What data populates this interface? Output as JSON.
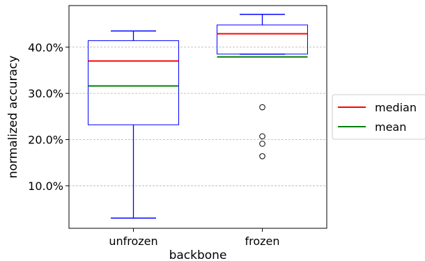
{
  "chart_data": {
    "type": "box",
    "xlabel": "backbone",
    "ylabel": "normalized accuracy",
    "categories": [
      "unfrozen",
      "frozen"
    ],
    "ylim": [
      0.008,
      0.49
    ],
    "yticks": [
      0.1,
      0.2,
      0.3,
      0.4
    ],
    "ytick_labels": [
      "10.0%",
      "20.0%",
      "30.0%",
      "40.0%"
    ],
    "grid": "y-dashed",
    "series": [
      {
        "category": "unfrozen",
        "whisker_low": 0.03,
        "q1": 0.232,
        "median": 0.37,
        "mean": 0.316,
        "q3": 0.414,
        "whisker_high": 0.435,
        "outliers": []
      },
      {
        "category": "frozen",
        "whisker_low": 0.385,
        "q1": 0.385,
        "median": 0.429,
        "mean": 0.379,
        "q3": 0.448,
        "whisker_high": 0.471,
        "outliers": [
          0.27,
          0.207,
          0.191,
          0.164
        ]
      }
    ],
    "legend": {
      "position": "right-outside",
      "entries": [
        {
          "label": "median",
          "color": "#ff0000"
        },
        {
          "label": "mean",
          "color": "#008000"
        }
      ]
    },
    "colors": {
      "box": "#0000ff",
      "median": "#ff0000",
      "mean": "#008000",
      "grid": "#b0b0b0"
    }
  }
}
